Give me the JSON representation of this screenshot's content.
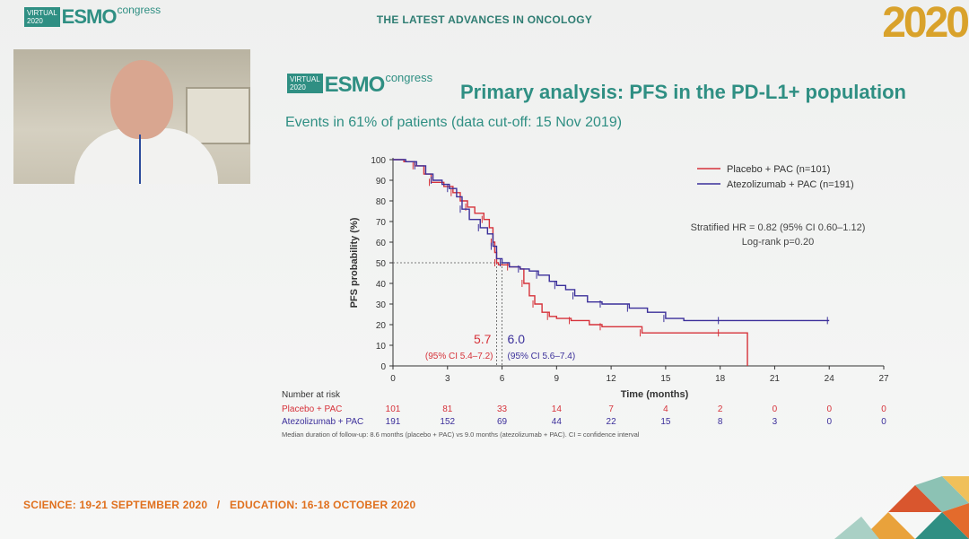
{
  "header": {
    "title": "THE LATEST ADVANCES IN ONCOLOGY",
    "logo_virtual": "VIRTUAL",
    "logo_year": "2020",
    "logo_esmo": "ESMO",
    "logo_congress": "congress",
    "big_year": "2020"
  },
  "slide": {
    "title": "Primary analysis: PFS in the PD-L1+ population",
    "subtitle": "Events in 61% of patients (data cut-off: 15 Nov 2019)"
  },
  "footer": {
    "text": "SCIENCE: 19-21 SEPTEMBER 2020   /   EDUCATION: 16-18 OCTOBER 2020"
  },
  "colors": {
    "placebo": "#d6323a",
    "atezolizumab": "#3b2f9a",
    "accent": "#2f8f83",
    "footer": "#e0701e"
  },
  "chart_data": {
    "type": "line",
    "xlabel": "Time (months)",
    "ylabel": "PFS probability (%)",
    "xlim": [
      0,
      27
    ],
    "ylim": [
      0,
      100
    ],
    "x_ticks": [
      0,
      3,
      6,
      9,
      12,
      15,
      18,
      21,
      24,
      27
    ],
    "y_ticks": [
      0,
      10,
      20,
      30,
      40,
      50,
      60,
      70,
      80,
      90,
      100
    ],
    "legend": {
      "placement": "top-right"
    },
    "series": [
      {
        "name": "Placebo + PAC (n=101)",
        "color": "#d6323a",
        "points": [
          [
            0,
            100
          ],
          [
            0.6,
            99
          ],
          [
            1.2,
            97
          ],
          [
            1.7,
            93
          ],
          [
            2.1,
            89
          ],
          [
            2.8,
            87
          ],
          [
            3.3,
            84
          ],
          [
            3.7,
            80
          ],
          [
            4.1,
            77
          ],
          [
            4.5,
            74
          ],
          [
            5.0,
            71
          ],
          [
            5.3,
            67
          ],
          [
            5.5,
            60
          ],
          [
            5.6,
            55
          ],
          [
            5.7,
            50
          ],
          [
            5.8,
            49
          ],
          [
            6.4,
            48
          ],
          [
            7.0,
            47
          ],
          [
            7.2,
            40
          ],
          [
            7.5,
            34
          ],
          [
            7.8,
            30
          ],
          [
            8.2,
            26
          ],
          [
            8.6,
            24
          ],
          [
            9.0,
            23
          ],
          [
            9.8,
            22
          ],
          [
            10.8,
            20
          ],
          [
            11.5,
            19
          ],
          [
            12.8,
            19
          ],
          [
            13.7,
            16
          ],
          [
            15.0,
            16
          ],
          [
            18.0,
            16
          ],
          [
            19.5,
            16
          ],
          [
            19.5,
            0
          ]
        ]
      },
      {
        "name": "Atezolizumab + PAC (n=191)",
        "color": "#3b2f9a",
        "points": [
          [
            0,
            100
          ],
          [
            0.7,
            99
          ],
          [
            1.3,
            97
          ],
          [
            1.8,
            93
          ],
          [
            2.2,
            90
          ],
          [
            2.7,
            88
          ],
          [
            3.1,
            86
          ],
          [
            3.5,
            82
          ],
          [
            3.8,
            76
          ],
          [
            4.2,
            71
          ],
          [
            4.8,
            67
          ],
          [
            5.2,
            64
          ],
          [
            5.5,
            58
          ],
          [
            5.7,
            52
          ],
          [
            6.0,
            50
          ],
          [
            6.4,
            48
          ],
          [
            7.0,
            47
          ],
          [
            7.5,
            46
          ],
          [
            8.0,
            44
          ],
          [
            8.6,
            41
          ],
          [
            9.0,
            39
          ],
          [
            9.5,
            37
          ],
          [
            10.0,
            34
          ],
          [
            10.7,
            31
          ],
          [
            11.5,
            30
          ],
          [
            12.5,
            30
          ],
          [
            13.0,
            28
          ],
          [
            14.0,
            26
          ],
          [
            15.0,
            23
          ],
          [
            16.0,
            22
          ],
          [
            18.0,
            22
          ],
          [
            21.0,
            22
          ],
          [
            24.0,
            22
          ]
        ]
      }
    ],
    "reference_line": {
      "y": 50
    },
    "medians": [
      {
        "value": "5.7",
        "x": 5.7,
        "ci": "(95% CI 5.4–7.2)",
        "color": "#d6323a"
      },
      {
        "value": "6.0",
        "x": 6.0,
        "ci": "(95% CI 5.6–7.4)",
        "color": "#3b2f9a"
      }
    ],
    "annotation": {
      "hr": "Stratified HR = 0.82 (95% CI 0.60–1.12)",
      "logrank": "Log-rank p=0.20"
    },
    "risk_table": {
      "title": "Number at risk",
      "rows": [
        {
          "label": "Placebo + PAC",
          "color": "#d6323a",
          "values": [
            "101",
            "81",
            "33",
            "14",
            "7",
            "4",
            "2",
            "0",
            "0",
            "0"
          ]
        },
        {
          "label": "Atezolizumab + PAC",
          "color": "#3b2f9a",
          "values": [
            "191",
            "152",
            "69",
            "44",
            "22",
            "15",
            "8",
            "3",
            "0",
            "0"
          ]
        }
      ]
    },
    "footnote": "Median duration of follow-up: 8.6 months (placebo + PAC) vs 9.0 months (atezolizumab + PAC). CI = confidence interval"
  }
}
